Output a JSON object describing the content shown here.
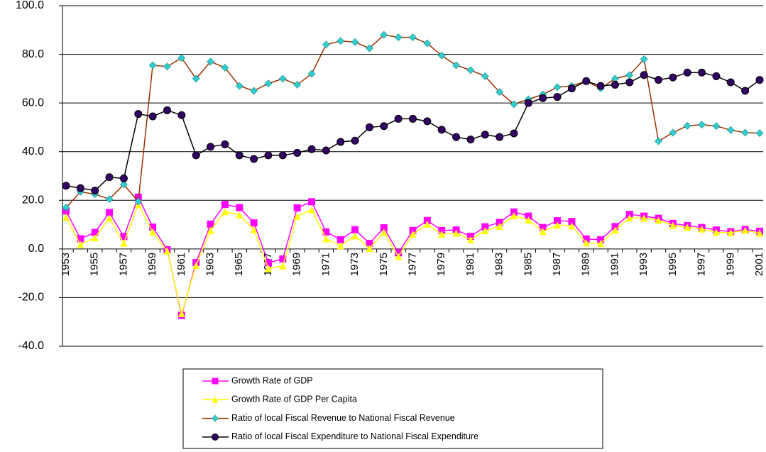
{
  "chart_data": {
    "type": "line",
    "categories": [
      "1953",
      null,
      "1955",
      null,
      "1957",
      null,
      "1959",
      null,
      "1961",
      null,
      "1963",
      null,
      "1965",
      null,
      "1967",
      null,
      "1969",
      null,
      "1971",
      null,
      "1973",
      null,
      "1975",
      null,
      "1977",
      null,
      "1979",
      null,
      "1981",
      null,
      "1983",
      null,
      "1985",
      null,
      "1987",
      null,
      "1989",
      null,
      "1991",
      null,
      "1993",
      null,
      "1995",
      null,
      "1997",
      null,
      "1999",
      null,
      "2001"
    ],
    "ylim": [
      -40,
      100
    ],
    "yticks": [
      {
        "value": -40,
        "label": "-40.0"
      },
      {
        "value": -20,
        "label": "-20.0"
      },
      {
        "value": 0,
        "label": "0.0"
      },
      {
        "value": 20,
        "label": "20.0"
      },
      {
        "value": 40,
        "label": "40.0"
      },
      {
        "value": 60,
        "label": "60.0"
      },
      {
        "value": 80,
        "label": "80.0"
      },
      {
        "value": 100,
        "label": "100.0"
      }
    ],
    "grid": true,
    "series": [
      {
        "name": "Growth Rate of GDP",
        "color": "#ff00ff",
        "marker_color": "#ff00ff",
        "marker": "square",
        "values": [
          15.6,
          4.2,
          6.8,
          15.0,
          5.1,
          21.3,
          9.0,
          -0.3,
          -27.3,
          -5.6,
          10.2,
          18.3,
          17.0,
          10.7,
          -5.7,
          -4.1,
          16.9,
          19.4,
          7.0,
          3.8,
          7.9,
          2.3,
          8.7,
          -1.6,
          7.6,
          11.7,
          7.6,
          7.8,
          5.2,
          9.1,
          10.9,
          15.2,
          13.5,
          8.8,
          11.6,
          11.3,
          4.1,
          3.8,
          9.2,
          14.2,
          13.5,
          12.6,
          10.5,
          9.6,
          8.8,
          7.8,
          7.1,
          8.0,
          7.3
        ]
      },
      {
        "name": "Growth Rate of GDP Per Capita",
        "color": "#ffff00",
        "marker_color": "#ffff00",
        "marker": "triangle",
        "values": [
          13.1,
          1.8,
          4.6,
          12.7,
          2.4,
          18.3,
          7.0,
          -0.8,
          -26.6,
          -6.7,
          7.6,
          15.3,
          14.0,
          7.9,
          -8.1,
          -7.0,
          13.4,
          16.1,
          4.2,
          1.3,
          5.4,
          0.2,
          6.8,
          -3.1,
          6.1,
          10.2,
          6.1,
          6.5,
          3.8,
          7.5,
          9.3,
          13.7,
          11.9,
          7.2,
          9.8,
          9.5,
          2.5,
          2.3,
          7.7,
          12.8,
          12.7,
          11.8,
          9.7,
          8.9,
          8.2,
          6.8,
          6.7,
          7.6,
          6.5
        ]
      },
      {
        "name": "Ratio of local Fiscal Revenue to National Fiscal Revenue",
        "color": "#993300",
        "marker_color": "#33cccc",
        "marker": "diamond",
        "values": [
          17,
          23.5,
          22.5,
          20.5,
          26.5,
          19.5,
          75.5,
          75,
          78.5,
          70,
          77,
          74.5,
          67,
          65,
          68,
          70,
          67.5,
          72,
          84,
          85.5,
          85,
          82.5,
          88,
          87,
          87,
          84.5,
          79.5,
          75.5,
          73.5,
          71,
          64.5,
          59.5,
          61.5,
          63.5,
          66.5,
          67,
          69,
          66,
          70,
          71.5,
          78,
          44.3,
          47.8,
          50.6,
          51.1,
          50.5,
          48.9,
          47.8,
          47.6
        ]
      },
      {
        "name": "Ratio of local Fiscal Expenditure to National Fiscal Expenditure",
        "color": "#000000",
        "marker_color": "#330066",
        "marker": "circle",
        "values": [
          26,
          25,
          24,
          29.5,
          29,
          55.5,
          54.5,
          57,
          55,
          38.5,
          42,
          43,
          38.5,
          37,
          38.5,
          38.5,
          39.5,
          41,
          40.5,
          44,
          44.5,
          50,
          50.5,
          53.5,
          53.5,
          52.5,
          49,
          46,
          45,
          47,
          46,
          47.5,
          60,
          62,
          62.5,
          66,
          69,
          67,
          67.5,
          68.5,
          71.5,
          69.5,
          70.5,
          72.5,
          72.5,
          71,
          68.5,
          65,
          69.5
        ]
      }
    ]
  }
}
